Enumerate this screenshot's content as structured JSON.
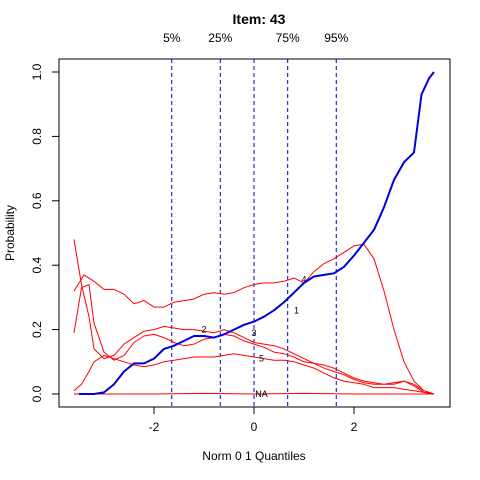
{
  "chart_data": {
    "type": "line",
    "title": "Item:  43",
    "xlabel": "Norm 0 1 Quantiles",
    "ylabel": "Probability",
    "xlim": [
      -3.6,
      3.6
    ],
    "ylim": [
      0,
      1.0
    ],
    "x_ticks": [
      {
        "value": -2,
        "label": "-2"
      },
      {
        "value": 0,
        "label": "0"
      },
      {
        "value": 2,
        "label": "2"
      }
    ],
    "y_ticks": [
      {
        "value": 0,
        "label": "0.0"
      },
      {
        "value": 0.2,
        "label": "0.2"
      },
      {
        "value": 0.4,
        "label": "0.4"
      },
      {
        "value": 0.6,
        "label": "0.6"
      },
      {
        "value": 0.8,
        "label": "0.8"
      },
      {
        "value": 1.0,
        "label": "1.0"
      }
    ],
    "grid": false,
    "percentiles": [
      {
        "label": "5%",
        "x": -1.645
      },
      {
        "label": "25%",
        "x": -0.674
      },
      {
        "label": "",
        "x": 0
      },
      {
        "label": "75%",
        "x": 0.674
      },
      {
        "label": "95%",
        "x": 1.645
      }
    ],
    "colors": {
      "key": "#0000dd",
      "distractor": "#ff0000",
      "percentile": "#0000cc",
      "axis": "#000000"
    },
    "series": [
      {
        "name": "4",
        "is_key": true,
        "label_at": [
          1.0,
          0.355
        ],
        "x": [
          -3.5,
          -3.2,
          -3.0,
          -2.8,
          -2.6,
          -2.4,
          -2.2,
          -2.0,
          -1.8,
          -1.6,
          -1.4,
          -1.2,
          -1.0,
          -0.8,
          -0.6,
          -0.4,
          -0.2,
          0.0,
          0.2,
          0.4,
          0.6,
          0.8,
          1.0,
          1.2,
          1.4,
          1.6,
          1.8,
          2.0,
          2.2,
          2.4,
          2.6,
          2.8,
          3.0,
          3.2,
          3.35,
          3.5,
          3.6
        ],
        "y": [
          0.0,
          0.0,
          0.005,
          0.03,
          0.07,
          0.095,
          0.095,
          0.11,
          0.14,
          0.15,
          0.165,
          0.18,
          0.18,
          0.175,
          0.185,
          0.2,
          0.215,
          0.225,
          0.24,
          0.26,
          0.285,
          0.315,
          0.345,
          0.365,
          0.37,
          0.375,
          0.395,
          0.43,
          0.47,
          0.51,
          0.58,
          0.665,
          0.72,
          0.75,
          0.93,
          0.98,
          1.0
        ]
      },
      {
        "name": "1",
        "is_key": false,
        "label_at": [
          0.85,
          0.26
        ],
        "x": [
          -3.6,
          -3.4,
          -3.2,
          -3.0,
          -2.8,
          -2.6,
          -2.4,
          -2.2,
          -2.0,
          -1.8,
          -1.6,
          -1.4,
          -1.2,
          -1.0,
          -0.8,
          -0.6,
          -0.4,
          -0.2,
          0.0,
          0.2,
          0.4,
          0.6,
          0.8,
          1.0,
          1.2,
          1.4,
          1.6,
          1.8,
          2.0,
          2.2,
          2.4,
          2.6,
          2.8,
          3.0,
          3.2,
          3.4,
          3.6
        ],
        "y": [
          0.32,
          0.37,
          0.35,
          0.325,
          0.325,
          0.31,
          0.28,
          0.29,
          0.27,
          0.27,
          0.285,
          0.29,
          0.295,
          0.31,
          0.315,
          0.31,
          0.315,
          0.33,
          0.34,
          0.345,
          0.345,
          0.35,
          0.36,
          0.345,
          0.38,
          0.405,
          0.42,
          0.44,
          0.46,
          0.465,
          0.42,
          0.32,
          0.2,
          0.1,
          0.04,
          0.01,
          0.0
        ]
      },
      {
        "name": "2",
        "is_key": false,
        "label_at": [
          -1.0,
          0.2
        ],
        "x": [
          -3.6,
          -3.45,
          -3.3,
          -3.2,
          -3.0,
          -2.8,
          -2.6,
          -2.4,
          -2.2,
          -2.0,
          -1.8,
          -1.6,
          -1.4,
          -1.2,
          -1.0,
          -0.8,
          -0.6,
          -0.4,
          -0.2,
          0.0,
          0.2,
          0.4,
          0.6,
          0.8,
          1.0,
          1.2,
          1.4,
          1.6,
          1.8,
          2.0,
          2.2,
          2.4,
          2.6,
          2.8,
          3.0,
          3.2,
          3.4,
          3.6
        ],
        "y": [
          0.48,
          0.34,
          0.24,
          0.14,
          0.11,
          0.12,
          0.155,
          0.175,
          0.195,
          0.2,
          0.21,
          0.205,
          0.2,
          0.2,
          0.195,
          0.19,
          0.2,
          0.19,
          0.175,
          0.16,
          0.155,
          0.15,
          0.14,
          0.125,
          0.11,
          0.095,
          0.08,
          0.07,
          0.06,
          0.045,
          0.035,
          0.03,
          0.03,
          0.035,
          0.04,
          0.025,
          0.005,
          0.0
        ]
      },
      {
        "name": "3",
        "is_key": false,
        "label_at": [
          0.0,
          0.19
        ],
        "x": [
          -3.6,
          -3.45,
          -3.3,
          -3.2,
          -3.0,
          -2.8,
          -2.6,
          -2.4,
          -2.2,
          -2.0,
          -1.8,
          -1.6,
          -1.4,
          -1.2,
          -1.0,
          -0.8,
          -0.6,
          -0.4,
          -0.2,
          0.0,
          0.2,
          0.4,
          0.6,
          0.8,
          1.0,
          1.2,
          1.4,
          1.6,
          1.8,
          2.0,
          2.2,
          2.4,
          2.6,
          2.8,
          3.0,
          3.2,
          3.4,
          3.6
        ],
        "y": [
          0.19,
          0.33,
          0.34,
          0.22,
          0.13,
          0.105,
          0.12,
          0.16,
          0.18,
          0.185,
          0.175,
          0.16,
          0.15,
          0.155,
          0.17,
          0.175,
          0.185,
          0.18,
          0.165,
          0.155,
          0.145,
          0.13,
          0.125,
          0.115,
          0.1,
          0.095,
          0.09,
          0.08,
          0.065,
          0.05,
          0.04,
          0.035,
          0.03,
          0.03,
          0.04,
          0.03,
          0.01,
          0.0
        ]
      },
      {
        "name": "5",
        "is_key": false,
        "label_at": [
          0.15,
          0.11
        ],
        "x": [
          -3.6,
          -3.45,
          -3.3,
          -3.2,
          -3.0,
          -2.8,
          -2.6,
          -2.4,
          -2.2,
          -2.0,
          -1.8,
          -1.6,
          -1.4,
          -1.2,
          -1.0,
          -0.8,
          -0.6,
          -0.4,
          -0.2,
          0.0,
          0.2,
          0.4,
          0.6,
          0.8,
          1.0,
          1.2,
          1.4,
          1.6,
          1.8,
          2.0,
          2.2,
          2.4,
          2.6,
          2.8,
          3.0,
          3.2,
          3.4,
          3.6
        ],
        "y": [
          0.01,
          0.03,
          0.07,
          0.1,
          0.12,
          0.11,
          0.1,
          0.09,
          0.085,
          0.09,
          0.1,
          0.105,
          0.11,
          0.115,
          0.115,
          0.115,
          0.12,
          0.125,
          0.12,
          0.115,
          0.11,
          0.105,
          0.105,
          0.1,
          0.09,
          0.08,
          0.065,
          0.05,
          0.04,
          0.035,
          0.03,
          0.02,
          0.02,
          0.02,
          0.015,
          0.01,
          0.005,
          0.0
        ]
      },
      {
        "name": "NA",
        "is_key": false,
        "label_at": [
          0.15,
          0.0
        ],
        "x": [
          -3.6,
          -3.0,
          -2.0,
          -1.0,
          0.0,
          1.0,
          2.0,
          3.0,
          3.6
        ],
        "y": [
          0.0,
          0.0,
          0.0,
          0.002,
          0.0,
          0.002,
          0.0,
          0.0,
          0.0
        ]
      }
    ]
  }
}
